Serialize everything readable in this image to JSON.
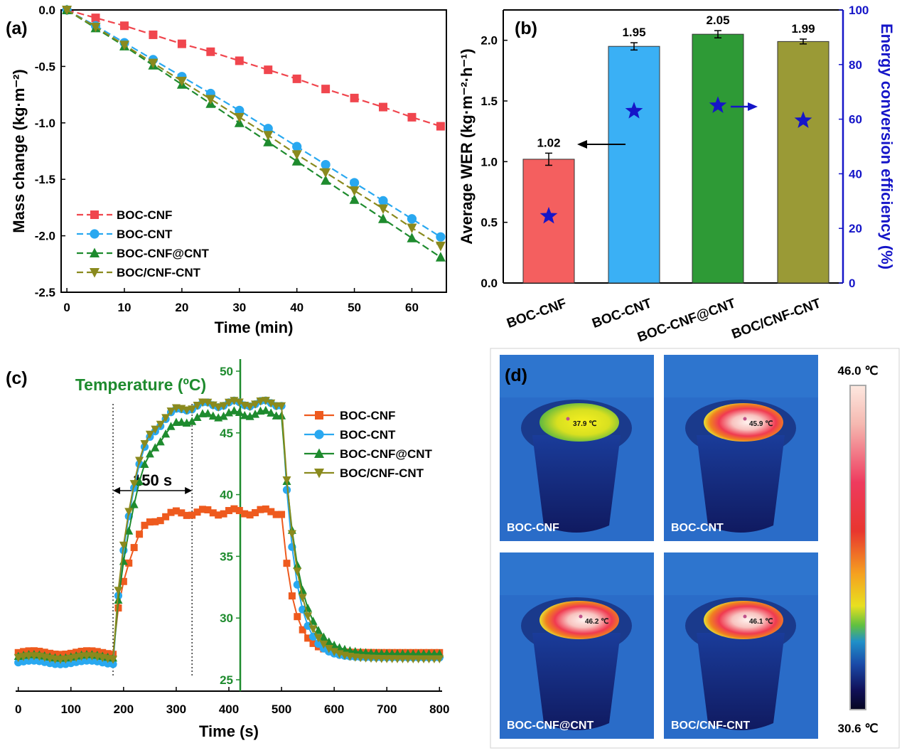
{
  "chart_data": [
    {
      "panel": "(a)",
      "type": "line",
      "xlabel": "Time (min)",
      "ylabel": "Mass change (kg·m⁻²)",
      "xlim": [
        -1,
        66
      ],
      "ylim": [
        -2.5,
        0.0
      ],
      "xticks": [
        "0",
        "10",
        "20",
        "30",
        "40",
        "50",
        "60"
      ],
      "yticks": [
        "0.0",
        "-0.5",
        "-1.0",
        "-1.5",
        "-2.0",
        "-2.5"
      ],
      "x": [
        0,
        5,
        10,
        15,
        20,
        25,
        30,
        35,
        40,
        45,
        50,
        55,
        60,
        65
      ],
      "series": [
        {
          "name": "BOC-CNF",
          "color": "#f0464e",
          "marker": "square",
          "values": [
            0,
            -0.07,
            -0.14,
            -0.22,
            -0.3,
            -0.37,
            -0.45,
            -0.53,
            -0.61,
            -0.7,
            -0.78,
            -0.86,
            -0.95,
            -1.03
          ]
        },
        {
          "name": "BOC-CNT",
          "color": "#29a8f0",
          "marker": "circle",
          "values": [
            0,
            -0.14,
            -0.29,
            -0.44,
            -0.59,
            -0.74,
            -0.89,
            -1.05,
            -1.21,
            -1.37,
            -1.53,
            -1.69,
            -1.85,
            -2.01
          ]
        },
        {
          "name": "BOC-CNF@CNT",
          "color": "#1e8b2e",
          "marker": "triangle-up",
          "values": [
            0,
            -0.16,
            -0.32,
            -0.49,
            -0.66,
            -0.83,
            -1.0,
            -1.17,
            -1.34,
            -1.51,
            -1.68,
            -1.85,
            -2.02,
            -2.19
          ]
        },
        {
          "name": "BOC/CNF-CNT",
          "color": "#8a8a1e",
          "marker": "triangle-down",
          "values": [
            0,
            -0.15,
            -0.31,
            -0.47,
            -0.63,
            -0.79,
            -0.95,
            -1.11,
            -1.28,
            -1.44,
            -1.6,
            -1.76,
            -1.93,
            -2.09
          ]
        }
      ],
      "legend_position": "bottom-left"
    },
    {
      "panel": "(b)",
      "type": "bar",
      "categories": [
        "BOC-CNF",
        "BOC-CNT",
        "BOC-CNF@CNT",
        "BOC/CNF-CNT"
      ],
      "values": [
        1.02,
        1.95,
        2.05,
        1.99
      ],
      "errors": [
        0.05,
        0.03,
        0.03,
        0.02
      ],
      "value_labels": [
        "1.02",
        "1.95",
        "2.05",
        "1.99"
      ],
      "colors": [
        "#f45f5f",
        "#3ab0f5",
        "#2e9a36",
        "#9a9a36"
      ],
      "ylabel": "Average WER (kg·m⁻²·h⁻¹)",
      "ylim": [
        0.0,
        2.25
      ],
      "yticks": [
        "0.0",
        "0.5",
        "1.0",
        "1.5",
        "2.0"
      ],
      "secondary_axis": {
        "ylabel": "Energy conversion efficiency (%)",
        "ylim": [
          0,
          100
        ],
        "yticks": [
          "0",
          "20",
          "40",
          "60",
          "80",
          "100"
        ],
        "color": "#1515c8",
        "values": [
          24.5,
          63,
          65,
          59.5
        ]
      }
    },
    {
      "panel": "(c)",
      "type": "line",
      "xlabel": "Time (s)",
      "ylabel": "Temperature (ºC)",
      "xlim": [
        -5,
        805
      ],
      "ylim": [
        24.5,
        50
      ],
      "xticks": [
        "0",
        "100",
        "200",
        "300",
        "400",
        "500",
        "600",
        "700",
        "800"
      ],
      "yticks": [
        "25",
        "30",
        "35",
        "40",
        "45",
        "50"
      ],
      "annotation": "150 s",
      "marked_times": [
        180,
        330
      ],
      "series": [
        {
          "name": "BOC-CNF",
          "color": "#ee5a1e",
          "marker": "square",
          "plateau": 38.6,
          "baseline": 27.2,
          "end": 27.2,
          "rise_tau": 28,
          "fall_tau": 22
        },
        {
          "name": "BOC-CNT",
          "color": "#29a8f0",
          "marker": "circle",
          "plateau": 47.4,
          "baseline": 26.4,
          "end": 26.8,
          "rise_tau": 35,
          "fall_tau": 24
        },
        {
          "name": "BOC-CNF@CNT",
          "color": "#1e8b2e",
          "marker": "triangle-up",
          "plateau": 46.6,
          "baseline": 26.9,
          "end": 27.1,
          "rise_tau": 40,
          "fall_tau": 30
        },
        {
          "name": "BOC/CNF-CNT",
          "color": "#8a8a1e",
          "marker": "triangle-down",
          "plateau": 47.4,
          "baseline": 26.8,
          "end": 26.7,
          "rise_tau": 34,
          "fall_tau": 28
        }
      ],
      "legend_position": "top-right"
    }
  ],
  "panel_d": {
    "label": "(d)",
    "scale_max": "46.0 ℃",
    "scale_min": "30.6 ℃",
    "images": [
      {
        "label": "BOC-CNF",
        "spot": "37.9 ℃"
      },
      {
        "label": "BOC-CNT",
        "spot": "45.9 ℃"
      },
      {
        "label": "BOC-CNF@CNT",
        "spot": "46.2 ℃"
      },
      {
        "label": "BOC/CNF-CNT",
        "spot": "46.1 ℃"
      }
    ]
  }
}
